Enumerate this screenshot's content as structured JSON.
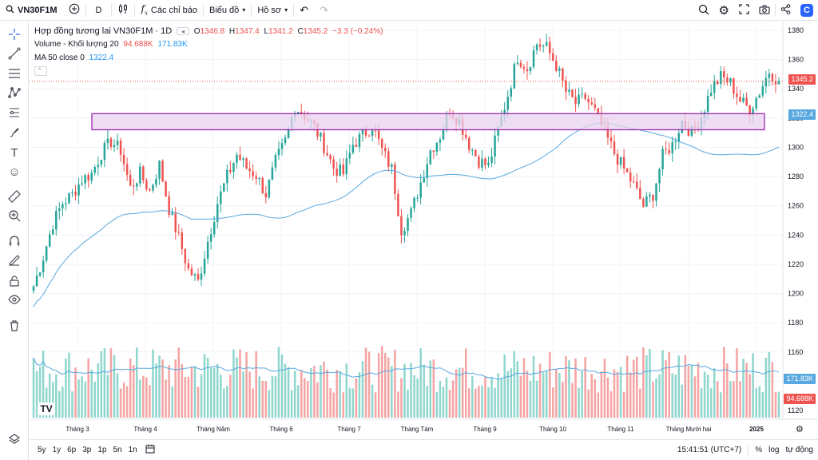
{
  "toolbar": {
    "symbol": "VN30F1M",
    "interval": "D",
    "indicators_label": "Các chỉ báo",
    "chart_type_label": "Biểu đồ",
    "profile_label": "Hồ sơ"
  },
  "legend": {
    "title": "Hợp đồng tương lai VN30F1M · 1D",
    "ohlc": {
      "o_label": "O",
      "o": "1346.8",
      "h_label": "H",
      "h": "1347.4",
      "l_label": "L",
      "l": "1341.2",
      "c_label": "C",
      "c": "1345.2",
      "change": "−3.3 (−0.24%)"
    },
    "volume_label": "Volume - Khối lượng 20",
    "volume_value": "94.688K",
    "volume_ma_value": "171.83K",
    "ma_label": "MA 50 close 0",
    "ma_value": "1322.4"
  },
  "price_tags": {
    "last": "1345.2",
    "ma": "1322.4",
    "vol_ma": "171.83K",
    "vol": "94.688K"
  },
  "bottom": {
    "ranges": [
      "5y",
      "1y",
      "6p",
      "3p",
      "1p",
      "5n",
      "1n"
    ],
    "time": "15:41:51 (UTC+7)",
    "percent": "%",
    "log": "log",
    "auto": "tự động"
  },
  "colors": {
    "up": "#26a69a",
    "down": "#ef5350",
    "up_vol": "#8fd6cd",
    "down_vol": "#f5a3a3",
    "ma": "#57a8e0",
    "zone_fill": "#e9d3ef",
    "zone_border": "#9c27b0",
    "accent": "#2962ff"
  },
  "chart_data": {
    "type": "candlestick",
    "symbol": "VN30F1M",
    "timeframe": "1D",
    "y_ticks": [
      1120,
      1140,
      1160,
      1180,
      1200,
      1220,
      1240,
      1260,
      1280,
      1300,
      1320,
      1340,
      1360,
      1380
    ],
    "ylim": [
      1114,
      1386
    ],
    "x_ticks": [
      "Tháng 3",
      "Tháng 4",
      "Tháng Năm",
      "Tháng 6",
      "Tháng 7",
      "Tháng Tám",
      "Tháng 9",
      "Tháng 10",
      "Tháng 11",
      "Tháng Mười hai",
      "2025"
    ],
    "price_scale_range": [
      1180,
      1386
    ],
    "volume_scale_range": [
      1118,
      1180
    ],
    "highlight_zone": {
      "from": 1312,
      "to": 1323
    },
    "close_series_by_week": [
      1205,
      1225,
      1248,
      1262,
      1268,
      1278,
      1282,
      1296,
      1304,
      1298,
      1272,
      1282,
      1270,
      1288,
      1258,
      1238,
      1216,
      1208,
      1236,
      1262,
      1280,
      1295,
      1286,
      1281,
      1268,
      1290,
      1304,
      1328,
      1322,
      1314,
      1301,
      1286,
      1282,
      1302,
      1308,
      1315,
      1298,
      1285,
      1244,
      1255,
      1276,
      1298,
      1308,
      1326,
      1318,
      1302,
      1291,
      1287,
      1312,
      1336,
      1362,
      1354,
      1371,
      1368,
      1356,
      1338,
      1330,
      1334,
      1324,
      1310,
      1296,
      1285,
      1274,
      1260,
      1268,
      1294,
      1302,
      1318,
      1310,
      1321,
      1340,
      1348,
      1344,
      1332,
      1326,
      1338,
      1352,
      1345.2
    ],
    "ma50": {
      "name": "MA 50 close",
      "last": 1322.4
    },
    "volume_ma": {
      "name": "Volume MA 20",
      "last": "171.83K"
    },
    "last_volume": "94.688K"
  }
}
